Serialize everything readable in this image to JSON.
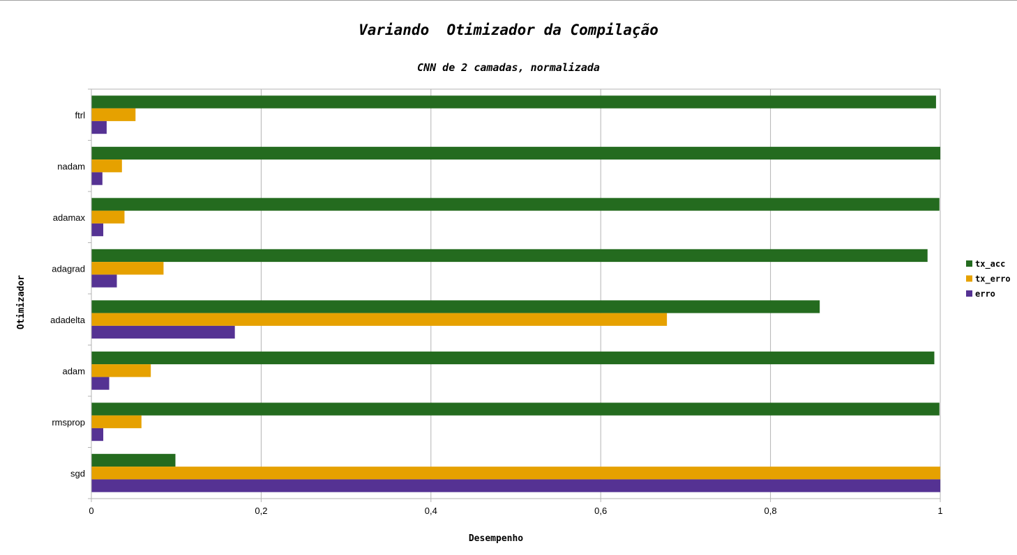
{
  "chart_data": {
    "type": "bar",
    "orientation": "horizontal",
    "title": "Variando  Otimizador da Compilação",
    "subtitle": "CNN de 2 camadas, normalizada",
    "xlabel": "Desempenho",
    "ylabel": "Otimizador",
    "xlim": [
      0,
      1
    ],
    "xticks": [
      "0",
      "0,2",
      "0,4",
      "0,6",
      "0,8",
      "1"
    ],
    "xtick_values": [
      0,
      0.2,
      0.4,
      0.6,
      0.8,
      1
    ],
    "grid": true,
    "legend_position": "right",
    "categories": [
      "ftrl",
      "nadam",
      "adamax",
      "adagrad",
      "adadelta",
      "adam",
      "rmsprop",
      "sgd"
    ],
    "series": [
      {
        "name": "tx_acc",
        "color": "#246b1f",
        "values": [
          0.995,
          1.0,
          0.999,
          0.985,
          0.858,
          0.993,
          0.999,
          0.099
        ]
      },
      {
        "name": "tx_erro",
        "color": "#e6a100",
        "values": [
          0.052,
          0.036,
          0.039,
          0.085,
          0.678,
          0.07,
          0.059,
          1.0
        ]
      },
      {
        "name": "erro",
        "color": "#553293",
        "values": [
          0.018,
          0.013,
          0.014,
          0.03,
          0.169,
          0.021,
          0.014,
          1.0
        ]
      }
    ]
  }
}
